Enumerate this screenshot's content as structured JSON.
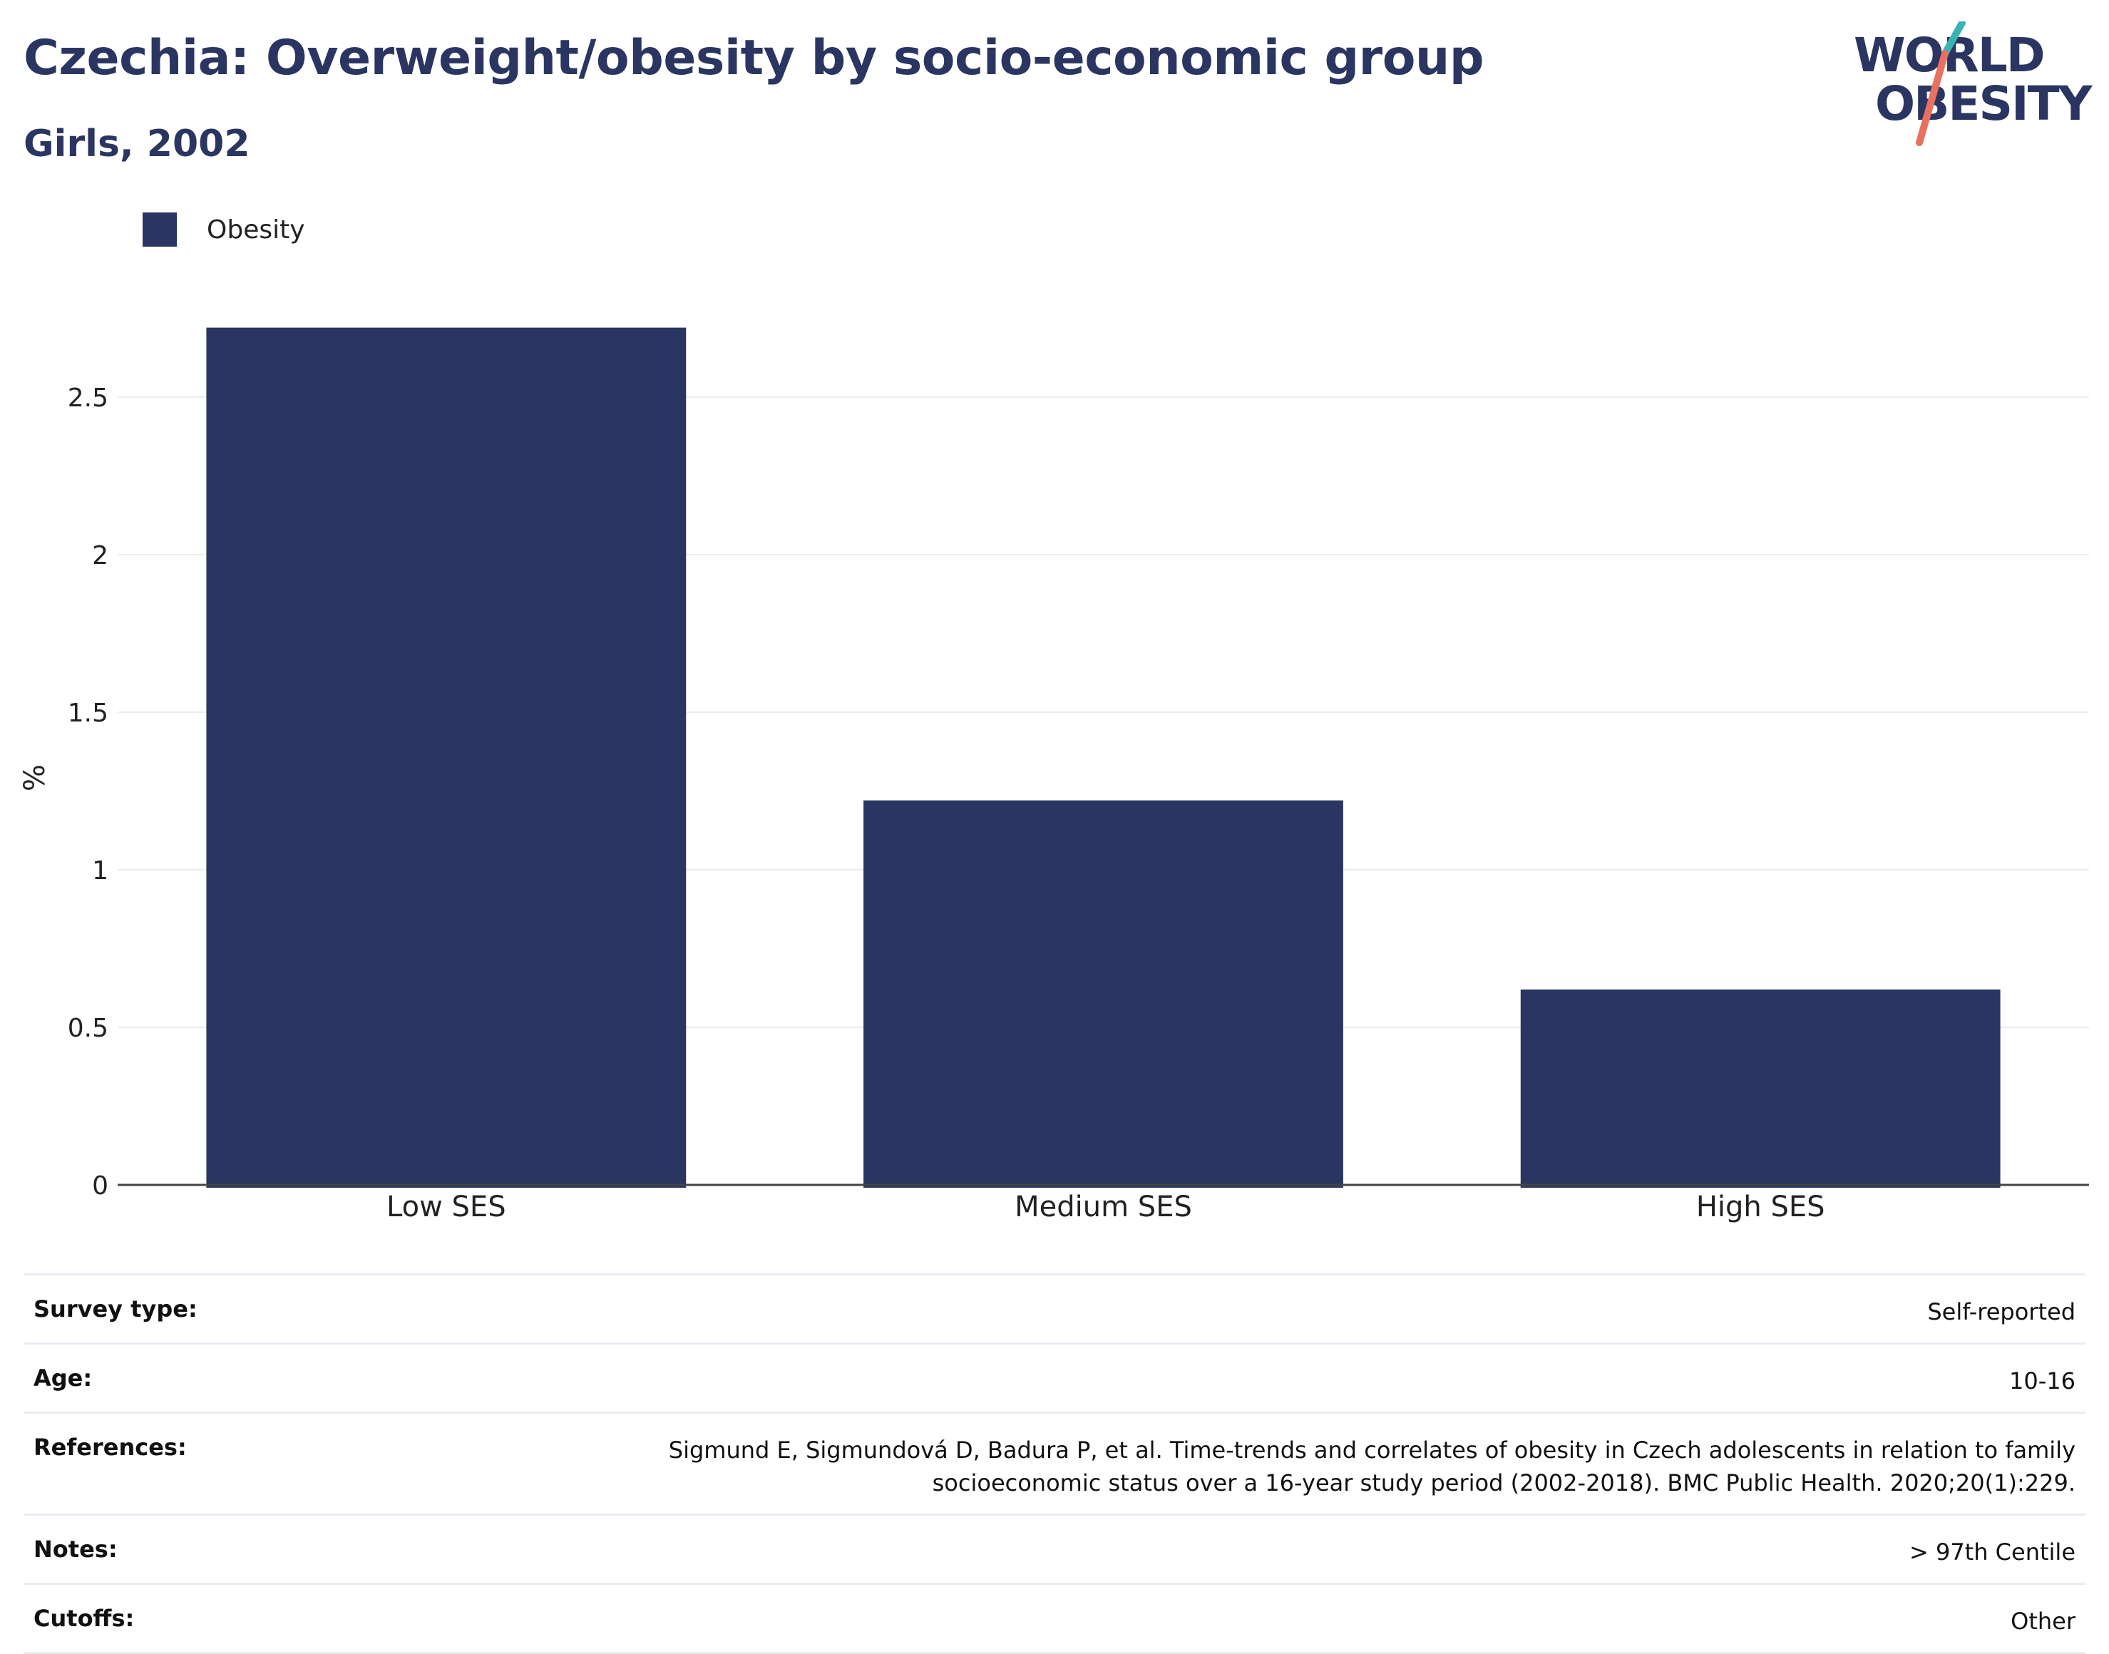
{
  "header": {
    "title": "Czechia: Overweight/obesity by socio-economic group",
    "subtitle": "Girls, 2002"
  },
  "logo": {
    "line1": "WORLD",
    "line2": "OBESITY",
    "accent_teal": "#3bb3b3",
    "accent_coral": "#e8705f"
  },
  "colors": {
    "primary": "#2a3661",
    "grid": "#e9ecf2",
    "axis": "#444444"
  },
  "chart_data": {
    "type": "bar",
    "categories": [
      "Low SES",
      "Medium SES",
      "High SES"
    ],
    "series": [
      {
        "name": "Obesity",
        "values": [
          2.72,
          1.22,
          0.62
        ],
        "color": "#2a3661"
      }
    ],
    "ylabel": "%",
    "xlabel": "",
    "ylim": [
      0,
      2.9
    ],
    "yticks": [
      0,
      0.5,
      1,
      1.5,
      2,
      2.5
    ],
    "ytick_labels": [
      "0",
      "0.5",
      "1",
      "1.5",
      "2",
      "2.5"
    ],
    "grid": true,
    "legend_position": "top-left"
  },
  "meta": [
    {
      "label": "Survey type:",
      "value": "Self-reported"
    },
    {
      "label": "Age:",
      "value": "10-16"
    },
    {
      "label": "References:",
      "value": "Sigmund E, Sigmundová D, Badura P, et al. Time-trends and correlates of obesity in Czech adolescents in relation to family socioeconomic status over a 16-year study period (2002-2018). BMC Public Health. 2020;20(1):229."
    },
    {
      "label": "Notes:",
      "value": "> 97th Centile"
    },
    {
      "label": "Cutoffs:",
      "value": "Other"
    }
  ]
}
